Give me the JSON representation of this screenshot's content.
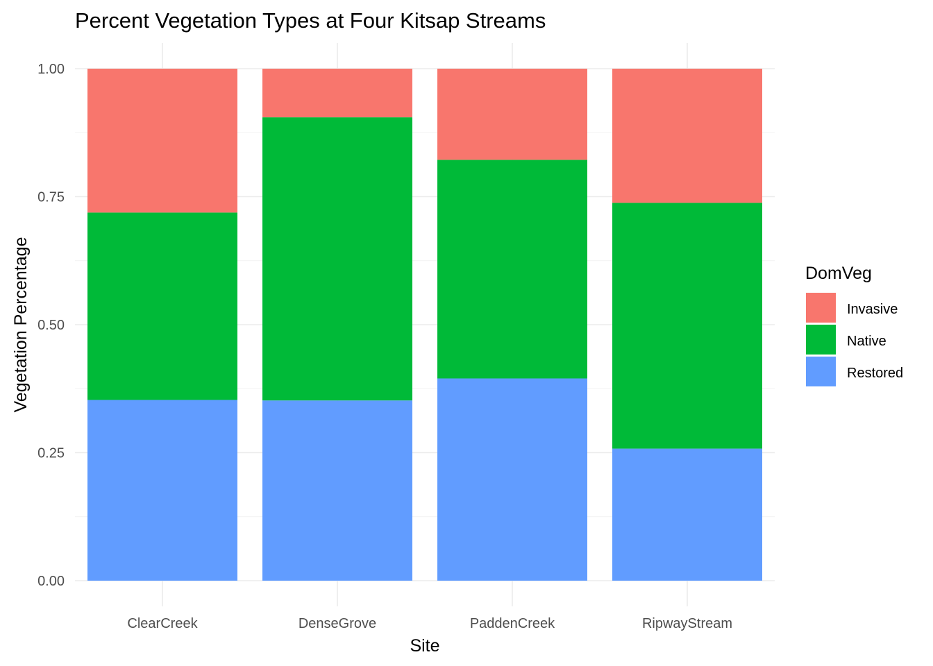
{
  "chart_data": {
    "type": "bar",
    "stacked": true,
    "title": "Percent Vegetation Types at Four Kitsap Streams",
    "xlabel": "Site",
    "ylabel": "Vegetation Percentage",
    "categories": [
      "ClearCreek",
      "DenseGrove",
      "PaddenCreek",
      "RipwayStream"
    ],
    "series": [
      {
        "name": "Restored",
        "values": [
          0.353,
          0.352,
          0.395,
          0.258
        ]
      },
      {
        "name": "Native",
        "values": [
          0.366,
          0.553,
          0.427,
          0.48
        ]
      },
      {
        "name": "Invasive",
        "values": [
          0.281,
          0.095,
          0.178,
          0.262
        ]
      }
    ],
    "ylim": [
      0,
      1
    ],
    "yticks": [
      0,
      0.25,
      0.5,
      0.75,
      1
    ],
    "ytick_labels": [
      "0.00",
      "0.25",
      "0.50",
      "0.75",
      "1.00"
    ],
    "grid": true,
    "legend": {
      "title": "DomVeg",
      "position": "right",
      "entries": [
        "Invasive",
        "Native",
        "Restored"
      ]
    },
    "colors": {
      "Invasive": "#F8766D",
      "Native": "#00BA38",
      "Restored": "#619CFF"
    }
  }
}
